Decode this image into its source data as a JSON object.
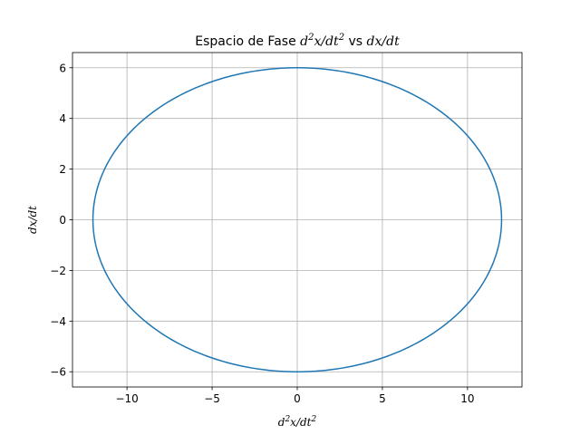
{
  "chart_data": {
    "type": "line",
    "title": "Espacio de Fase d²x/dt² vs dx/dt",
    "title_parts": {
      "lead": "Espacio de Fase ",
      "a_main": "d",
      "a_sup1": "2",
      "a_mid": "x/dt",
      "a_sup2": "2",
      "vs": " vs ",
      "b": "dx/dt"
    },
    "xlabel": "d²x/dt²",
    "xlabel_parts": {
      "main": "d",
      "sup1": "2",
      "mid": "x/dt",
      "sup2": "2"
    },
    "ylabel": "dx/dt",
    "xlim": [
      -13.2,
      13.2
    ],
    "ylim": [
      -6.6,
      6.6
    ],
    "xticks": [
      -10,
      -5,
      0,
      5,
      10
    ],
    "xtick_labels": [
      "−10",
      "−5",
      "0",
      "5",
      "10"
    ],
    "yticks": [
      -6,
      -4,
      -2,
      0,
      2,
      4,
      6
    ],
    "ytick_labels": [
      "−6",
      "−4",
      "−2",
      "0",
      "2",
      "4",
      "6"
    ],
    "grid": true,
    "series": [
      {
        "x_amplitude": 12,
        "y_amplitude": 6,
        "shape": "ellipse",
        "color": "#1f77b4"
      }
    ]
  }
}
